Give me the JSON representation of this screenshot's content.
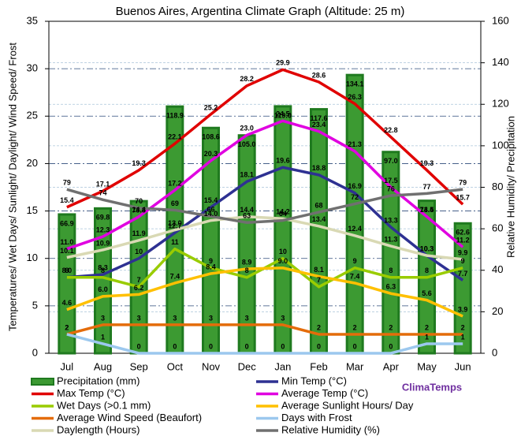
{
  "chart_data": {
    "type": "combo",
    "title": "Buenos Aires, Argentina Climate Graph (Altitude: 25 m)",
    "y_label": "Temperatures/ Wet Days/ Sunlight/ Daylight/ Wind Speed/ Frost",
    "y2_label": "Relative Humidity/ Precipitation",
    "brand": "ClimaTemps",
    "categories": [
      "Jul",
      "Aug",
      "Sep",
      "Oct",
      "Nov",
      "Dec",
      "Jan",
      "Feb",
      "Mar",
      "Apr",
      "May",
      "Jun"
    ],
    "ylim": [
      0,
      35
    ],
    "yticks": [
      0,
      5,
      10,
      15,
      20,
      25,
      30,
      35
    ],
    "y2lim": [
      0,
      160
    ],
    "y2ticks": [
      0,
      20,
      40,
      60,
      80,
      100,
      120,
      140,
      160
    ],
    "grid": true,
    "series": [
      {
        "name": "Precipitation (mm)",
        "type": "bar",
        "axis": "y2",
        "color": "#3c9a32",
        "values": [
          66.9,
          69.8,
          73.3,
          118.9,
          108.6,
          105.0,
          119.0,
          117.6,
          134.1,
          97.0,
          73.5,
          62.6
        ],
        "value_labels": [
          "66.9",
          "69.8",
          "73.3",
          "118.9",
          "108.6",
          "105.0",
          "119.0",
          "117.6",
          "134.1",
          "97.0",
          "73.5",
          "62.6"
        ]
      },
      {
        "name": "Min Temp (°C)",
        "type": "line",
        "color": "#2e3192",
        "values": [
          8.0,
          8.3,
          10,
          12.7,
          15.4,
          18.1,
          19.6,
          18.8,
          16.9,
          13.3,
          10.3,
          7.7
        ],
        "value_labels": [
          "8.0",
          "8.3",
          "10",
          "12.7",
          "15.4",
          "18.1",
          "19.6",
          "18.8",
          "16.9",
          "13.3",
          "10.3",
          "7.7"
        ]
      },
      {
        "name": "Max Temp (°C)",
        "type": "line",
        "color": "#e00000",
        "values": [
          15.4,
          17.1,
          19.3,
          22.1,
          25.2,
          28.2,
          29.9,
          28.6,
          26.3,
          22.8,
          19.3,
          15.7
        ],
        "value_labels": [
          "15.4",
          "17.1",
          "19.3",
          "22.1",
          "25.2",
          "28.2",
          "29.9",
          "28.6",
          "26.3",
          "22.8",
          "19.3",
          "15.7"
        ]
      },
      {
        "name": "Average Temp (°C)",
        "type": "line",
        "color": "#e000e0",
        "values": [
          11.0,
          12.3,
          14.4,
          17.2,
          20.3,
          23.0,
          24.5,
          23.4,
          21.3,
          17.5,
          14.4,
          11.2
        ],
        "value_labels": [
          "11.0",
          "12.3",
          "14.4",
          "17.2",
          "20.3",
          "23.0",
          "24.5",
          "23.4",
          "21.3",
          "17.5",
          "14.4",
          "11.2"
        ]
      },
      {
        "name": "Wet Days (>0.1 mm)",
        "type": "line",
        "color": "#99cc00",
        "values": [
          8,
          8,
          7,
          11,
          9,
          8,
          10,
          7,
          9,
          8,
          8,
          9
        ],
        "value_labels": [
          "8",
          "8",
          "7",
          "11",
          "9",
          "8",
          "10",
          "7",
          "9",
          "8",
          "8",
          "9"
        ]
      },
      {
        "name": "Average Sunlight Hours/ Day",
        "type": "line",
        "color": "#ffc000",
        "values": [
          4.6,
          6.0,
          6.2,
          7.4,
          8.4,
          8.9,
          9.0,
          8.1,
          7.4,
          6.3,
          5.6,
          3.9
        ],
        "value_labels": [
          "4.6",
          "6.0",
          "6.2",
          "7.4",
          "8.4",
          "8.9",
          "9.0",
          "8.1",
          "7.4",
          "6.3",
          "5.6",
          "3.9"
        ]
      },
      {
        "name": "Average Wind Speed (Beaufort)",
        "type": "line",
        "color": "#e46c0a",
        "values": [
          2,
          3,
          3,
          3,
          3,
          3,
          3,
          2,
          2,
          2,
          2,
          2
        ],
        "value_labels": [
          "2",
          "3",
          "3",
          "3",
          "3",
          "3",
          "3",
          "2",
          "2",
          "2",
          "2",
          "2"
        ]
      },
      {
        "name": "Days with Frost",
        "type": "line",
        "color": "#9cc8ee",
        "values": [
          2,
          1,
          0,
          0,
          0,
          0,
          0,
          0,
          0,
          0,
          1,
          1
        ],
        "value_labels": [
          "2",
          "1",
          "0",
          "0",
          "0",
          "0",
          "0",
          "0",
          "0",
          "0",
          "1",
          "1"
        ]
      },
      {
        "name": "Daylength (Hours)",
        "type": "line",
        "color": "#d9d9b4",
        "values": [
          10.1,
          10.9,
          11.9,
          13.0,
          14.0,
          14.4,
          14.2,
          13.4,
          12.4,
          11.3,
          10.3,
          9.9
        ],
        "value_labels": [
          "10.1",
          "10.9",
          "11.9",
          "13.0",
          "14.0",
          "14.4",
          "14.2",
          "13.4",
          "12.4",
          "11.3",
          "10.3",
          "9.9"
        ]
      },
      {
        "name": "Relative Humidity (%)",
        "type": "line",
        "axis": "y2",
        "color": "#707070",
        "values": [
          79,
          74,
          70,
          69,
          66,
          63,
          64,
          68,
          72,
          76,
          77,
          79
        ],
        "value_labels": [
          "79",
          "74",
          "70",
          "69",
          "66",
          "63",
          "64",
          "68",
          "72",
          "76",
          "77",
          "79"
        ]
      }
    ]
  }
}
